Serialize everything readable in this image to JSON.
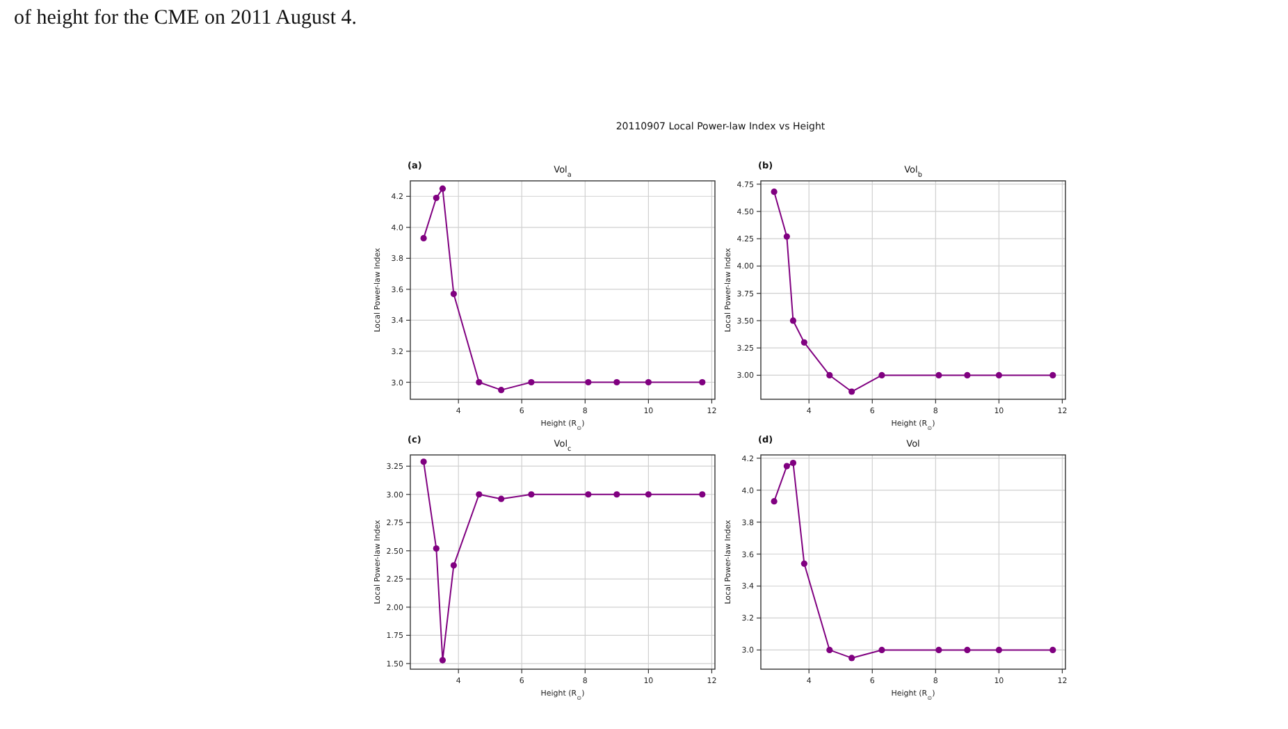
{
  "chart_data": [
    {
      "type": "line",
      "title": "Vol$_{a}$",
      "xlabel": "Height (R$_{⊙}$)",
      "ylabel": "Local Power-law Index",
      "annotations": [
        "of height for the CME on 2011 August 4.",
        "20110907 Local Power-law Index vs Height",
        "(a)"
      ],
      "x": [
        2.9,
        3.3,
        3.5,
        3.85,
        4.65,
        5.35,
        6.3,
        8.1,
        9.0,
        10.0,
        11.7
      ],
      "series": [
        {
          "color": "#800080",
          "values": [
            3.93,
            4.19,
            4.25,
            3.57,
            3.0,
            2.95,
            3.0,
            3.0,
            3.0,
            3.0,
            3.0
          ]
        }
      ],
      "xlim": [
        2.48,
        12.1
      ],
      "xticks": [
        4,
        6,
        8,
        10,
        12
      ],
      "ylim": [
        2.89,
        4.3
      ],
      "yticks": [
        {
          "value": 3,
          "label": "3.0"
        },
        3.2,
        3.4,
        3.6,
        3.8,
        {
          "value": 4,
          "label": "4.0"
        },
        4.2
      ],
      "grid": true,
      "marker": "circle",
      "line_style": "solid"
    },
    {
      "type": "line",
      "title": "Vol$_{b}$",
      "xlabel": "Height (R$_{⊙}$)",
      "ylabel": "Local Power-law Index",
      "annotations": [
        "(b)"
      ],
      "x": [
        2.9,
        3.3,
        3.5,
        3.85,
        4.65,
        5.35,
        6.3,
        8.1,
        9.0,
        10.0,
        11.7
      ],
      "series": [
        {
          "color": "#800080",
          "values": [
            4.68,
            4.27,
            3.5,
            3.3,
            3.0,
            2.85,
            3.0,
            3.0,
            3.0,
            3.0,
            3.0
          ]
        }
      ],
      "xlim": [
        2.48,
        12.1
      ],
      "xticks": [
        4,
        6,
        8,
        10,
        12
      ],
      "ylim": [
        2.78,
        4.78
      ],
      "yticks": [
        {
          "value": 3,
          "label": "3.00"
        },
        3.25,
        {
          "value": 3.5,
          "label": "3.50"
        },
        3.75,
        {
          "value": 4,
          "label": "4.00"
        },
        4.25,
        {
          "value": 4.5,
          "label": "4.50"
        },
        4.75
      ],
      "grid": true,
      "marker": "circle",
      "line_style": "solid"
    },
    {
      "type": "line",
      "title": "Vol$_{c}$",
      "xlabel": "Height (R$_{⊙}$)",
      "ylabel": "Local Power-law Index",
      "annotations": [
        "(c)"
      ],
      "x": [
        2.9,
        3.3,
        3.5,
        3.85,
        4.65,
        5.35,
        6.3,
        8.1,
        9.0,
        10.0,
        11.7
      ],
      "series": [
        {
          "color": "#800080",
          "values": [
            3.29,
            2.52,
            1.53,
            2.37,
            3.0,
            2.96,
            3.0,
            3.0,
            3.0,
            3.0,
            3.0
          ]
        }
      ],
      "xlim": [
        2.48,
        12.1
      ],
      "xticks": [
        4,
        6,
        8,
        10,
        12
      ],
      "ylim": [
        1.45,
        3.35
      ],
      "yticks": [
        {
          "value": 1.5,
          "label": "1.50"
        },
        1.75,
        {
          "value": 2,
          "label": "2.00"
        },
        2.25,
        {
          "value": 2.5,
          "label": "2.50"
        },
        2.75,
        {
          "value": 3,
          "label": "3.00"
        },
        3.25
      ],
      "grid": true,
      "marker": "circle",
      "line_style": "solid"
    },
    {
      "type": "line",
      "title": "Vol",
      "xlabel": "Height (R$_{⊙}$)",
      "ylabel": "Local Power-law Index",
      "annotations": [
        "(d)"
      ],
      "x": [
        2.9,
        3.3,
        3.5,
        3.85,
        4.65,
        5.35,
        6.3,
        8.1,
        9.0,
        10.0,
        11.7
      ],
      "series": [
        {
          "color": "#800080",
          "values": [
            3.93,
            4.15,
            4.17,
            3.54,
            3.0,
            2.95,
            3.0,
            3.0,
            3.0,
            3.0,
            3.0
          ]
        }
      ],
      "xlim": [
        2.48,
        12.1
      ],
      "xticks": [
        4,
        6,
        8,
        10,
        12
      ],
      "ylim": [
        2.88,
        4.22
      ],
      "yticks": [
        {
          "value": 3,
          "label": "3.0"
        },
        3.2,
        3.4,
        3.6,
        3.8,
        {
          "value": 4,
          "label": "4.0"
        },
        4.2
      ],
      "grid": true,
      "marker": "circle",
      "line_style": "solid"
    }
  ]
}
